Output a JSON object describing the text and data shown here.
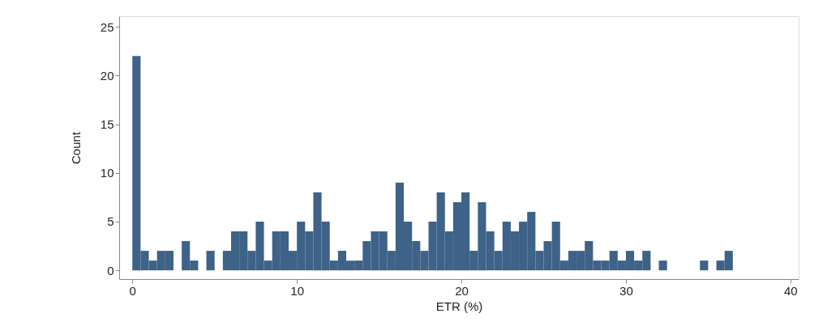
{
  "chart_data": {
    "type": "histogram",
    "xlabel": "ETR (%)",
    "ylabel": "Count",
    "color": "#3e6288",
    "bins": [
      0,
      0.5,
      1,
      1.5,
      2,
      2.5,
      3,
      3.5,
      4,
      4.5,
      5,
      5.5,
      6,
      6.5,
      7,
      7.5,
      8,
      8.5,
      9,
      9.5,
      10,
      10.5,
      11,
      11.5,
      12,
      12.5,
      13,
      13.5,
      14,
      14.5,
      15,
      15.5,
      16,
      16.5,
      17,
      17.5,
      18,
      18.5,
      19,
      19.5,
      20,
      20.5,
      21,
      21.5,
      22,
      22.5,
      23,
      23.5,
      24,
      24.5,
      25,
      25.5,
      26,
      26.5,
      27,
      27.5,
      28,
      28.5,
      29,
      29.5,
      30,
      30.5,
      31,
      31.5,
      32,
      32.5,
      33,
      33.5,
      34,
      34.5,
      35,
      35.5,
      36,
      36.5
    ],
    "values": [
      22,
      2,
      1,
      2,
      2,
      0,
      3,
      1,
      0,
      2,
      0,
      2,
      4,
      4,
      2,
      5,
      1,
      4,
      4,
      2,
      5,
      4,
      8,
      5,
      1,
      2,
      1,
      1,
      3,
      4,
      4,
      2,
      9,
      5,
      3,
      2,
      5,
      8,
      4,
      7,
      8,
      2,
      7,
      4,
      2,
      5,
      4,
      5,
      6,
      2,
      3,
      5,
      1,
      2,
      2,
      3,
      1,
      1,
      2,
      1,
      2,
      1,
      2,
      0,
      1,
      0,
      0,
      0,
      0,
      1,
      0,
      1,
      2
    ],
    "xlim": [
      -0.8,
      40.5
    ],
    "ylim": [
      -0.9,
      26.1
    ],
    "xticks": [
      0,
      10,
      20,
      30,
      40
    ],
    "yticks": [
      0,
      5,
      10,
      15,
      20,
      25
    ],
    "grid": false
  }
}
